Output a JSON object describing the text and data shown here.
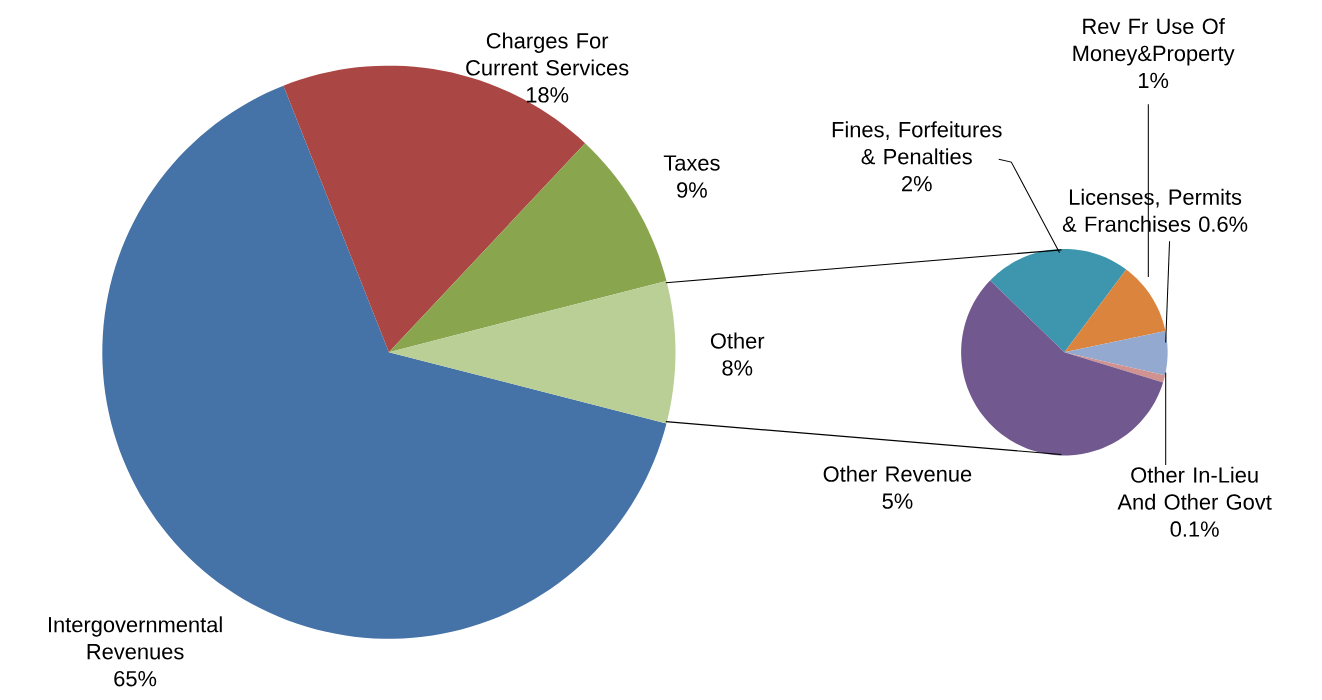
{
  "chart_data": [
    {
      "type": "pie",
      "categories": [
        "Intergovernmental Revenues",
        "Charges For Current Services",
        "Taxes",
        "Other"
      ],
      "values": [
        65,
        18,
        9,
        8
      ],
      "colors": [
        "#4572a7",
        "#aa4643",
        "#89a54e",
        "#b9cf96"
      ],
      "value_labels": [
        "65%",
        "18%",
        "9%",
        "8%"
      ]
    },
    {
      "type": "pie",
      "categories": [
        "Fines, Forfeitures & Penalties",
        "Rev Fr Use Of Money&Property",
        "Licenses, Permits & Franchises",
        "Other In-Lieu And Other Govt",
        "Other Revenue"
      ],
      "values": [
        2,
        1,
        0.6,
        0.1,
        5
      ],
      "colors": [
        "#3d96ae",
        "#db843d",
        "#93a9cf",
        "#d19392",
        "#71588f"
      ],
      "value_labels": [
        "2%",
        "1%",
        "0.6%",
        "0.1%",
        "5%"
      ]
    }
  ]
}
